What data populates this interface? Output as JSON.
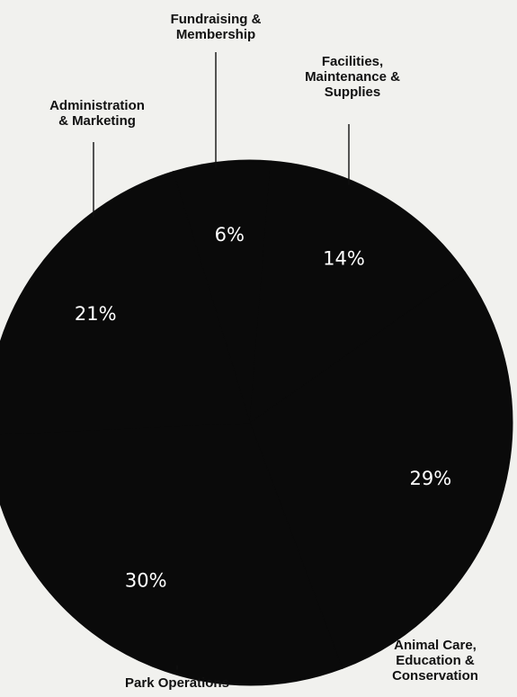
{
  "chart_data": {
    "type": "pie",
    "title": "",
    "slices": [
      {
        "label": "Fundraising & Membership",
        "value": 6,
        "display": "6%"
      },
      {
        "label": "Facilities, Maintenance & Supplies",
        "value": 14,
        "display": "14%"
      },
      {
        "label": "Animal Care, Education & Conservation",
        "value": 29,
        "display": "29%"
      },
      {
        "label": "Park Operations",
        "value": 30,
        "display": "30%"
      },
      {
        "label": "Administration & Marketing",
        "value": 21,
        "display": "21%"
      }
    ],
    "colors": {
      "slice": "#0a0a0a",
      "text": "#ffffff",
      "leader": "#111111",
      "background": "#f1f1ee"
    }
  }
}
